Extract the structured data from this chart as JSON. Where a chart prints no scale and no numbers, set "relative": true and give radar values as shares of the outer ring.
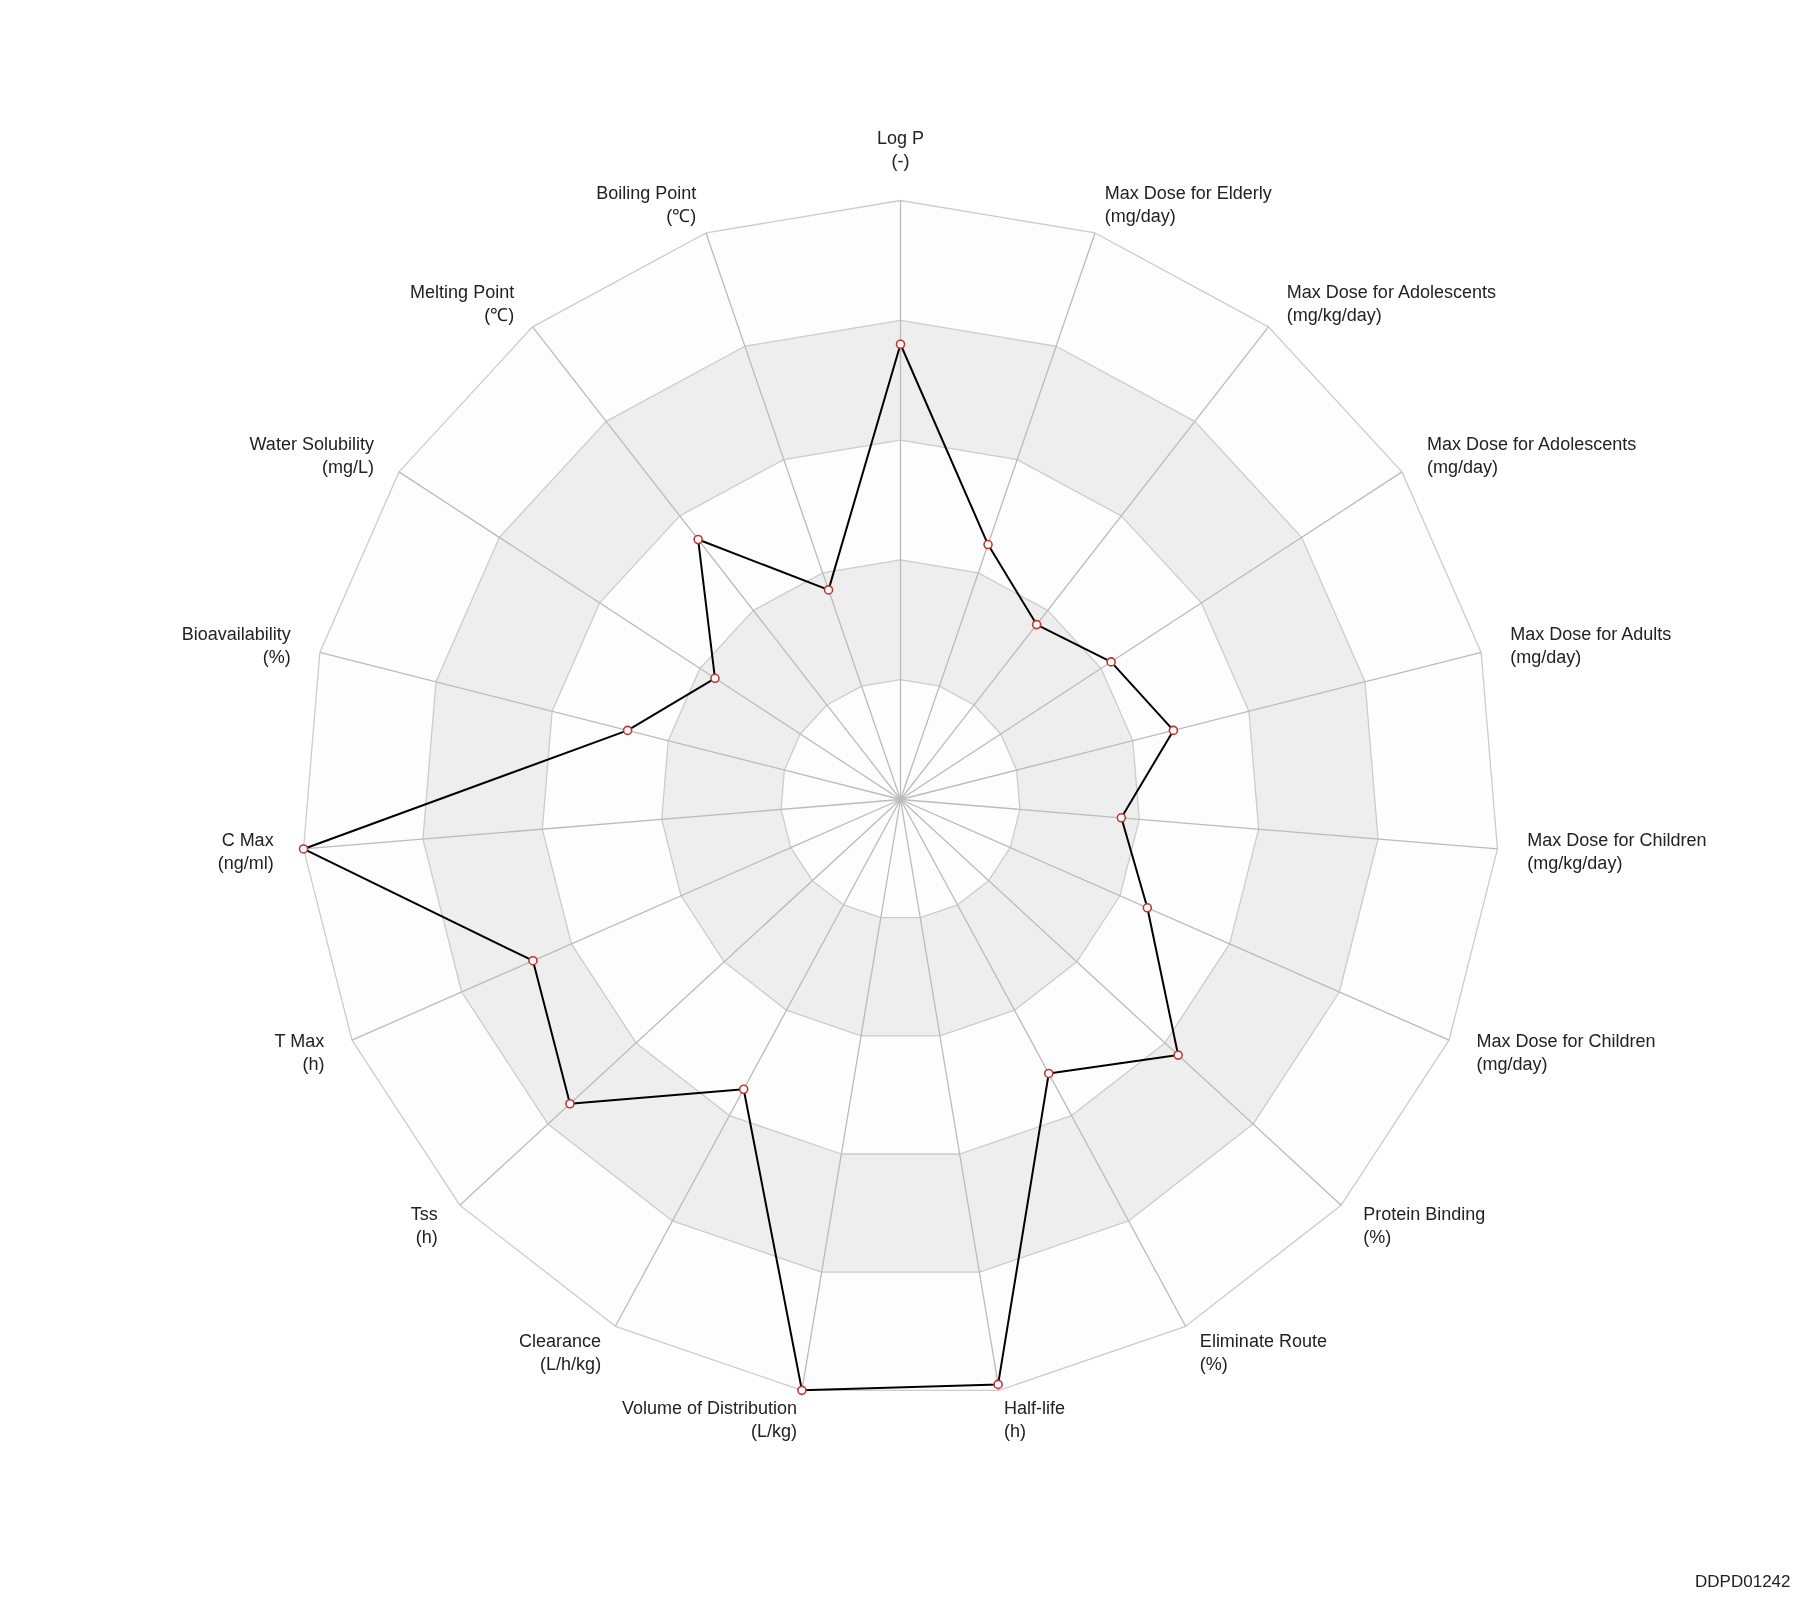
{
  "chart_data": {
    "type": "radar",
    "relative": true,
    "grid": true,
    "marker": "circle",
    "categories": [
      "Log P\n(-)",
      "Max Dose for Elderly\n(mg/day)",
      "Max Dose for Adolescents\n(mg/kg/day)",
      "Max Dose for Adolescents\n(mg/day)",
      "Max Dose for Adults\n(mg/day)",
      "Max Dose for Children\n(mg/kg/day)",
      "Max Dose for Children\n(mg/day)",
      "Protein Binding\n(%)",
      "Eliminate Route\n(%)",
      "Half-life\n(h)",
      "Volume of Distribution\n(L/kg)",
      "Clearance\n(L/h/kg)",
      "Tss\n(h)",
      "T Max\n(h)",
      "C Max\n(ng/ml)",
      "Bioavailability\n(%)",
      "Water Solubility\n(mg/L)",
      "Melting Point\n(℃)",
      "Boiling Point\n(℃)"
    ],
    "series": [
      {
        "color": "#000000",
        "values": [
          0.76,
          0.45,
          0.37,
          0.42,
          0.47,
          0.37,
          0.45,
          0.63,
          0.52,
          0.99,
          1.0,
          0.55,
          0.75,
          0.67,
          1.0,
          0.47,
          0.37,
          0.55,
          0.37
        ]
      }
    ],
    "annotations": [
      "DDPD01242"
    ]
  }
}
